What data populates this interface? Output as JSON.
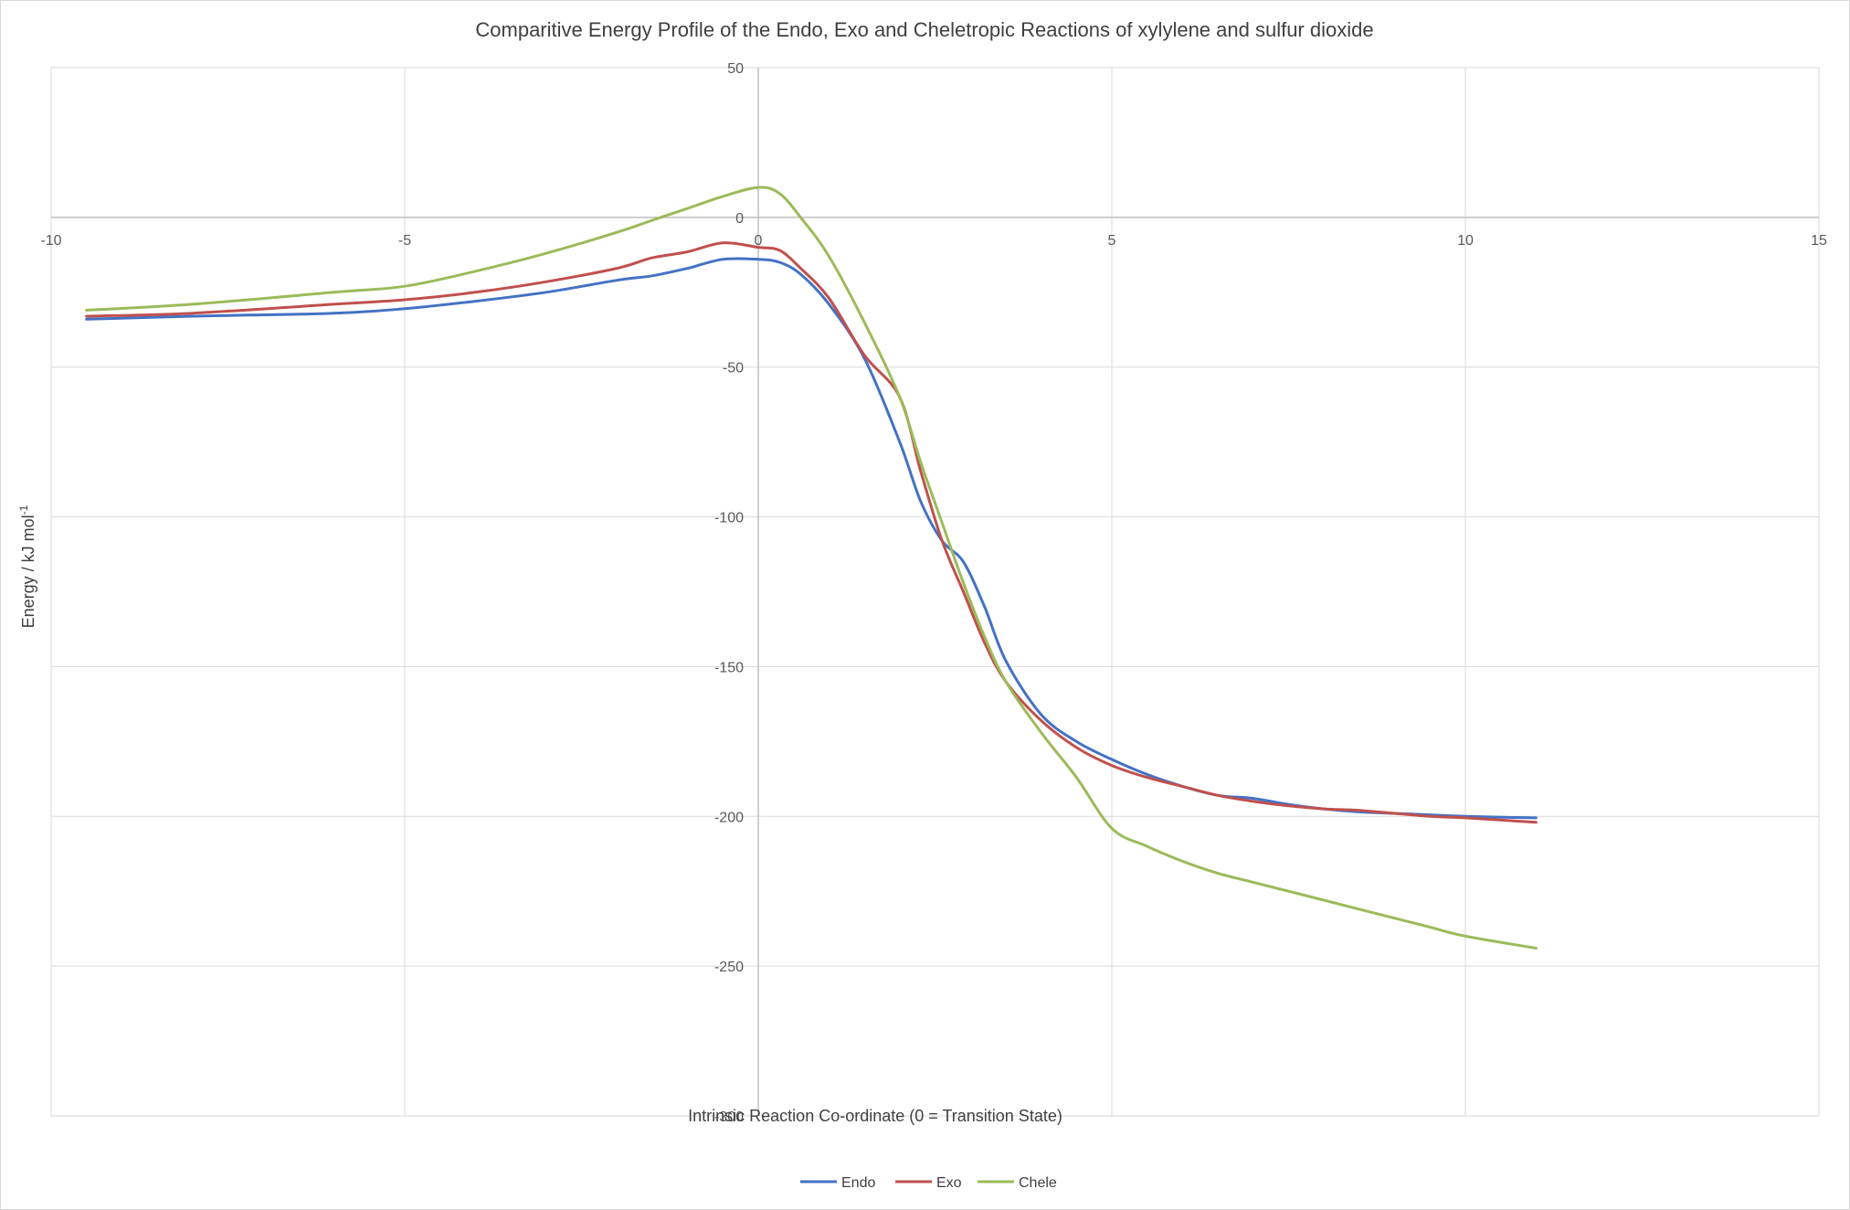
{
  "chart_data": {
    "type": "line",
    "title": "Comparitive Energy Profile of the Endo, Exo and Cheletropic Reactions of xylylene and sulfur dioxide",
    "xlabel": "Intrinsic Reaction Co-ordinate (0 = Transition State)",
    "ylabel": "Energy / kJ mol",
    "ylabel_sup": "-1",
    "xlim": [
      -10,
      15
    ],
    "ylim": [
      -300,
      50
    ],
    "x_ticks": [
      -10,
      -5,
      0,
      5,
      10,
      15
    ],
    "y_ticks": [
      50,
      0,
      -50,
      -100,
      -150,
      -200,
      -250,
      -300
    ],
    "grid": true,
    "legend_position": "bottom",
    "series": [
      {
        "name": "Endo",
        "color": "#4472C4",
        "x": [
          -9.5,
          -8,
          -6,
          -5,
          -4,
          -3,
          -2,
          -1.5,
          -1,
          -0.5,
          0,
          0.3,
          0.6,
          1.0,
          1.5,
          2.0,
          2.3,
          2.6,
          2.9,
          3.2,
          3.5,
          4.0,
          4.5,
          5.0,
          5.5,
          6.0,
          6.5,
          7.0,
          7.5,
          8.0,
          8.5,
          9.0,
          9.5,
          10.0,
          11.0
        ],
        "y": [
          -34,
          -33,
          -32,
          -30.5,
          -28,
          -25,
          -21,
          -19.5,
          -17,
          -14,
          -14,
          -15,
          -19,
          -29,
          -47,
          -75,
          -95,
          -108,
          -115,
          -130,
          -148,
          -166,
          -175,
          -181,
          -186,
          -190,
          -193,
          -194,
          -196,
          -197.5,
          -198.5,
          -199,
          -199.5,
          -200,
          -200.5
        ]
      },
      {
        "name": "Exo",
        "color": "#C0504D",
        "x": [
          -9.5,
          -8,
          -6,
          -5,
          -4,
          -3,
          -2,
          -1.5,
          -1,
          -0.5,
          0,
          0.3,
          0.6,
          1.0,
          1.5,
          2.0,
          2.3,
          2.6,
          2.9,
          3.2,
          3.5,
          4.0,
          4.5,
          5.0,
          5.5,
          6.0,
          6.5,
          7.0,
          7.5,
          8.0,
          8.5,
          9.0,
          9.5,
          10.0,
          11.0
        ],
        "y": [
          -33,
          -32,
          -29,
          -27.5,
          -25,
          -21.5,
          -17,
          -13.5,
          -11.5,
          -8.5,
          -10,
          -11,
          -17,
          -27,
          -46,
          -60,
          -85,
          -108,
          -125,
          -142,
          -155,
          -168,
          -177,
          -183,
          -187,
          -190,
          -193,
          -195,
          -196.5,
          -197.5,
          -198,
          -199,
          -200,
          -200.5,
          -202
        ]
      },
      {
        "name": "Chele",
        "color": "#9BBB59",
        "x": [
          -9.5,
          -8,
          -6,
          -5,
          -4,
          -3,
          -2,
          -1.5,
          -1,
          -0.5,
          0,
          0.3,
          0.6,
          1.0,
          1.5,
          2.0,
          2.3,
          2.6,
          2.9,
          3.2,
          3.5,
          4.0,
          4.5,
          5.0,
          5.5,
          6.0,
          6.5,
          7.0,
          7.5,
          8.0,
          8.5,
          9.0,
          9.5,
          10.0,
          11.0
        ],
        "y": [
          -31,
          -29,
          -25,
          -23,
          -18,
          -12,
          -5,
          -1,
          3,
          7,
          10,
          8,
          0,
          -13,
          -35,
          -60,
          -82,
          -102,
          -122,
          -140,
          -155,
          -172,
          -187,
          -204,
          -210,
          -215,
          -219,
          -222,
          -225,
          -228,
          -231,
          -234,
          -237,
          -240,
          -244
        ]
      }
    ]
  }
}
